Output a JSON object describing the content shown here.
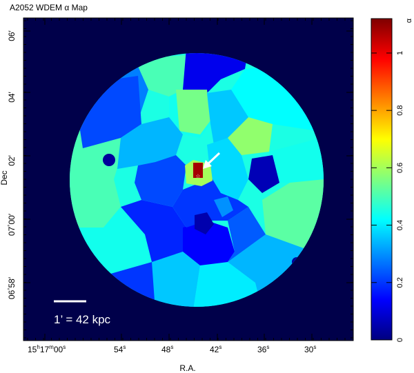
{
  "title": "A2052 WDEM α Map",
  "axes": {
    "xlabel": "R.A.",
    "ylabel": "Dec",
    "x_ticks": [
      {
        "h": "15",
        "hs": "h",
        "m": "17",
        "ms": "m",
        "s": "00",
        "ss": "s"
      },
      {
        "s": "54",
        "ss": "s"
      },
      {
        "s": "48",
        "ss": "s"
      },
      {
        "s": "42",
        "ss": "s"
      },
      {
        "s": "36",
        "ss": "s"
      },
      {
        "s": "30",
        "ss": "s"
      }
    ],
    "y_ticks": [
      {
        "deg": "",
        "min": "06",
        "mark": "′"
      },
      {
        "deg": "",
        "min": "04",
        "mark": "′"
      },
      {
        "deg": "",
        "min": "02",
        "mark": "′"
      },
      {
        "deg": "07",
        "degmark": "°",
        "min": "00",
        "mark": "′"
      },
      {
        "deg": "06",
        "degmark": "°",
        "min": "58",
        "mark": "′"
      }
    ]
  },
  "colorbar": {
    "label": "α",
    "min": 0,
    "max": 1.12,
    "ticks": [
      "0",
      "0.2",
      "0.4",
      "0.6",
      "0.8",
      "1"
    ],
    "tick_values": [
      0,
      0.2,
      0.4,
      0.6,
      0.8,
      1.0
    ]
  },
  "scalebar": {
    "label": "1’ = 42 kpc"
  },
  "colors": {
    "background": "#00004a",
    "jet": [
      "#00007f",
      "#0000ff",
      "#007fff",
      "#00ffff",
      "#7fff7f",
      "#ffff00",
      "#ff7f00",
      "#ff0000",
      "#7f0000"
    ]
  },
  "regions": [
    {
      "name": "cell-north-1",
      "alpha": 0.5
    },
    {
      "name": "cell-north-2",
      "alpha": 0.12
    },
    {
      "name": "cell-north-3",
      "alpha": 0.38
    },
    {
      "name": "cell-north-4",
      "alpha": 0.44
    },
    {
      "name": "cell-ne-1",
      "alpha": 0.58
    },
    {
      "name": "cell-ne-2",
      "alpha": 0.42
    },
    {
      "name": "cell-nw-1",
      "alpha": 0.22
    },
    {
      "name": "cell-nw-2",
      "alpha": 0.28
    },
    {
      "name": "cell-east-1",
      "alpha": 0.44
    },
    {
      "name": "cell-east-2",
      "alpha": 0.52
    },
    {
      "name": "cell-west-1",
      "alpha": 0.5
    },
    {
      "name": "cell-west-2",
      "alpha": 0.45
    },
    {
      "name": "cell-south-1",
      "alpha": 0.36
    },
    {
      "name": "cell-south-2",
      "alpha": 0.4
    },
    {
      "name": "cell-sw-1",
      "alpha": 0.44
    },
    {
      "name": "cell-se-1",
      "alpha": 0.34
    },
    {
      "name": "cell-inner-1",
      "alpha": 0.18
    },
    {
      "name": "cell-inner-2",
      "alpha": 0.14
    },
    {
      "name": "cell-inner-3",
      "alpha": 0.24
    },
    {
      "name": "cell-inner-4",
      "alpha": 0.08
    },
    {
      "name": "cell-inner-5",
      "alpha": 0.2
    },
    {
      "name": "cell-inner-6",
      "alpha": 0.3
    },
    {
      "name": "cell-inner-7",
      "alpha": 0.05
    },
    {
      "name": "cell-core",
      "alpha": 1.08
    },
    {
      "name": "cell-core-ring",
      "alpha": 0.6
    }
  ]
}
